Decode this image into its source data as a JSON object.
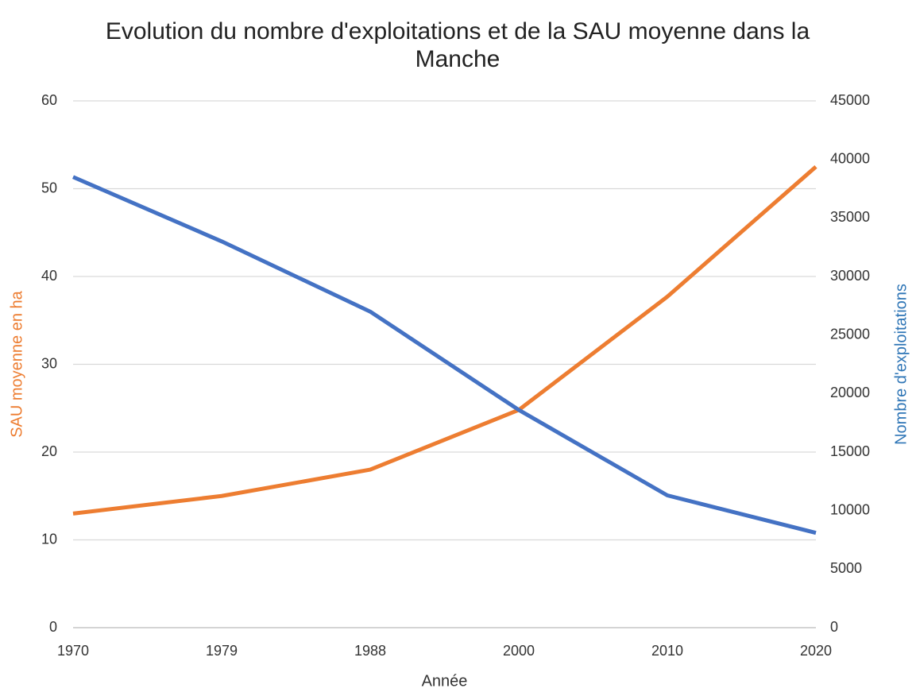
{
  "chart_data": {
    "type": "line",
    "title": "Evolution du nombre d'exploitations et de la SAU moyenne dans la Manche",
    "x_label": "Année",
    "y_label": "SAU moyenne en ha",
    "y2_label": "Nombre d'exploitations",
    "categories": [
      "1970",
      "1979",
      "1988",
      "2000",
      "2010",
      "2020"
    ],
    "series": [
      {
        "name": "SAU moyenne en ha",
        "color": "#ED7D31",
        "values": [
          13,
          15,
          18,
          24.8,
          37.7,
          52.5
        ]
      },
      {
        "name": "Nombre d'exploitations",
        "color": "#4472C4",
        "axis": "y2",
        "values": [
          38500,
          33000,
          27000,
          18600,
          11300,
          8100
        ]
      }
    ],
    "ylim": [
      0,
      60
    ],
    "yticks": [
      0,
      10,
      20,
      30,
      40,
      50,
      60
    ],
    "y2lim": [
      0,
      45000
    ],
    "y2ticks": [
      0,
      5000,
      10000,
      15000,
      20000,
      25000,
      30000,
      35000,
      40000,
      45000
    ],
    "grid": true,
    "y_label_color": "#ED7D31",
    "y2_label_color": "#2E75B6"
  }
}
